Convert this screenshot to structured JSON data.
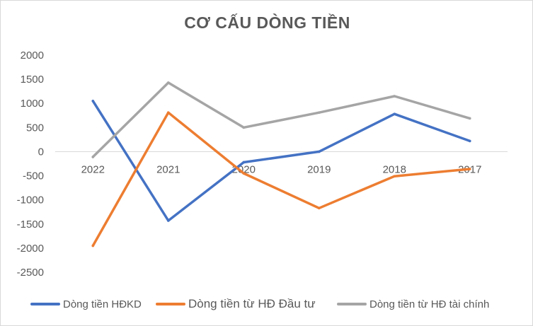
{
  "chart_data": {
    "type": "line",
    "title": "CƠ CẤU DÒNG TIỀN",
    "xlabel": "",
    "ylabel": "",
    "categories": [
      "2022",
      "2021",
      "2020",
      "2019",
      "2018",
      "2017"
    ],
    "ylim": [
      -2500,
      2000
    ],
    "yticks": [
      2000,
      1500,
      1000,
      500,
      0,
      -500,
      -1000,
      -1500,
      -2000,
      -2500
    ],
    "grid": false,
    "legend_position": "bottom",
    "series": [
      {
        "name": "Dòng tiền HĐKD",
        "color": "#4472c4",
        "values": [
          1050,
          -1430,
          -220,
          0,
          780,
          220
        ]
      },
      {
        "name": "Dòng tiền từ HĐ Đầu tư",
        "color": "#ed7d31",
        "values": [
          -1950,
          810,
          -450,
          -1170,
          -510,
          -360
        ]
      },
      {
        "name": "Dòng tiền từ HĐ tài chính",
        "color": "#a5a5a5",
        "values": [
          -110,
          1430,
          500,
          810,
          1150,
          690
        ]
      }
    ]
  }
}
